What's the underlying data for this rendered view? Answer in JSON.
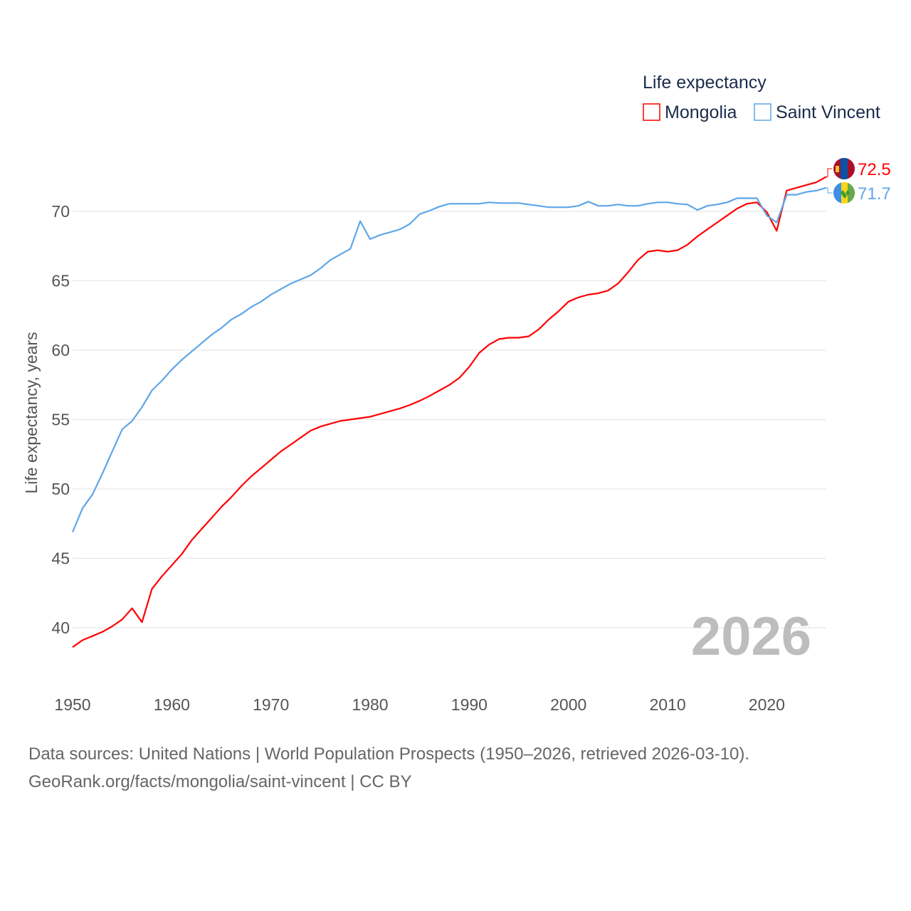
{
  "chart_data": {
    "type": "line",
    "title": "",
    "legend_title": "Life expectancy",
    "legend_position": "top-right",
    "ylabel": "Life expectancy, years",
    "xlabel": "",
    "ylim": [
      36.5,
      73.5
    ],
    "xlim": [
      1950,
      2026
    ],
    "yticks": [
      40,
      45,
      50,
      55,
      60,
      65,
      70
    ],
    "xticks": [
      1950,
      1960,
      1970,
      1980,
      1990,
      2000,
      2010,
      2020
    ],
    "grid": true,
    "year_watermark": "2026",
    "x": [
      1950,
      1951,
      1952,
      1953,
      1954,
      1955,
      1956,
      1957,
      1958,
      1959,
      1960,
      1961,
      1962,
      1963,
      1964,
      1965,
      1966,
      1967,
      1968,
      1969,
      1970,
      1971,
      1972,
      1973,
      1974,
      1975,
      1976,
      1977,
      1978,
      1979,
      1980,
      1981,
      1982,
      1983,
      1984,
      1985,
      1986,
      1987,
      1988,
      1989,
      1990,
      1991,
      1992,
      1993,
      1994,
      1995,
      1996,
      1997,
      1998,
      1999,
      2000,
      2001,
      2002,
      2003,
      2004,
      2005,
      2006,
      2007,
      2008,
      2009,
      2010,
      2011,
      2012,
      2013,
      2014,
      2015,
      2016,
      2017,
      2018,
      2019,
      2020,
      2021,
      2022,
      2023,
      2024,
      2025,
      2026
    ],
    "series": [
      {
        "name": "Mongolia",
        "color": "#ff0000",
        "end_label": "72.5",
        "flag": "mongolia-flag",
        "values": [
          38.6,
          39.1,
          39.4,
          39.7,
          40.1,
          40.6,
          41.4,
          40.4,
          42.8,
          43.7,
          44.5,
          45.3,
          46.3,
          47.1,
          47.9,
          48.7,
          49.4,
          50.2,
          50.9,
          51.5,
          52.1,
          52.7,
          53.2,
          53.7,
          54.2,
          54.5,
          54.7,
          54.9,
          55.0,
          55.1,
          55.2,
          55.4,
          55.6,
          55.8,
          56.05,
          56.35,
          56.7,
          57.1,
          57.5,
          58.0,
          58.8,
          59.8,
          60.4,
          60.8,
          60.9,
          60.9,
          61.0,
          61.5,
          62.2,
          62.8,
          63.5,
          63.8,
          64.0,
          64.1,
          64.3,
          64.8,
          65.6,
          66.5,
          67.1,
          67.2,
          67.1,
          67.2,
          67.6,
          68.2,
          68.7,
          69.2,
          69.7,
          70.2,
          70.55,
          70.65,
          69.95,
          68.6,
          71.5,
          71.7,
          71.9,
          72.1,
          72.5
        ]
      },
      {
        "name": "Saint Vincent",
        "color": "#5ea6e8",
        "end_label": "71.7",
        "flag": "saint-vincent-flag",
        "values": [
          46.9,
          48.6,
          49.6,
          51.1,
          52.7,
          54.3,
          54.9,
          55.9,
          57.1,
          57.8,
          58.6,
          59.3,
          59.9,
          60.5,
          61.1,
          61.6,
          62.2,
          62.6,
          63.1,
          63.5,
          64.0,
          64.4,
          64.8,
          65.1,
          65.4,
          65.9,
          66.5,
          66.9,
          67.3,
          69.3,
          68.0,
          68.3,
          68.5,
          68.7,
          69.1,
          69.8,
          70.05,
          70.35,
          70.55,
          70.55,
          70.55,
          70.55,
          70.65,
          70.6,
          70.6,
          70.6,
          70.5,
          70.4,
          70.3,
          70.3,
          70.3,
          70.4,
          70.7,
          70.4,
          70.4,
          70.5,
          70.4,
          70.4,
          70.55,
          70.65,
          70.65,
          70.55,
          70.5,
          70.1,
          70.4,
          70.5,
          70.65,
          70.95,
          70.95,
          70.95,
          69.7,
          69.2,
          71.2,
          71.2,
          71.4,
          71.5,
          71.7
        ]
      }
    ]
  },
  "footer": {
    "line1": "Data sources: United Nations | World Population Prospects (1950–2026, retrieved 2026-03-10).",
    "line2": "GeoRank.org/facts/mongolia/saint-vincent | CC BY"
  }
}
